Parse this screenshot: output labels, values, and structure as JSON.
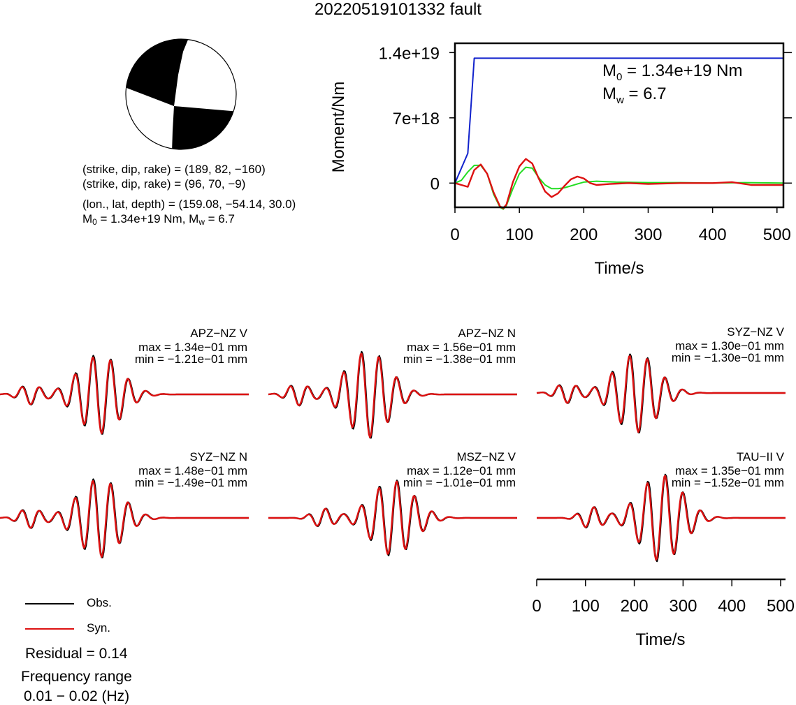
{
  "page_title": "20220519101332 fault",
  "colors": {
    "observed": "#000000",
    "synthetic": "#dd1111",
    "moment": "#1122cc",
    "moment_rate": "#22dd22",
    "beachball_fill": "#000000"
  },
  "source": {
    "plane1": "(strike, dip, rake) = (189, 82, −160)",
    "plane2": "(strike, dip, rake) = (96, 70, −9)",
    "location": "(lon., lat, depth) = (159.08, −54.14, 30.0)",
    "moment_prefix": "M",
    "moment_sub": "0",
    "moment_mid": " = 1.34e+19 Nm, M",
    "moment_sub2": "w",
    "moment_tail": " = 6.7"
  },
  "chart_data": [
    {
      "type": "line",
      "title": "",
      "xlabel": "Time/s",
      "ylabel": "Moment/Nm",
      "xlim": [
        0,
        510
      ],
      "ylim": [
        -2.6e+18,
        1.5e+19
      ],
      "xticks": [
        0,
        100,
        200,
        300,
        400,
        500
      ],
      "xtick_labels": [
        "0",
        "100",
        "200",
        "300",
        "400",
        "500"
      ],
      "yticks": [
        0,
        7e+18,
        1.4e+19
      ],
      "ytick_labels": [
        "0",
        "7e+18",
        "1.4e+19"
      ],
      "annotation_m0": {
        "prefix": "M",
        "sub": "0",
        "text": " = 1.34e+19 Nm"
      },
      "annotation_mw": {
        "prefix": "M",
        "sub": "w",
        "text": " = 6.7"
      },
      "series": [
        {
          "key": "moment",
          "x": [
            0,
            20,
            30,
            510
          ],
          "y": [
            0,
            3.2e+18,
            1.34e+19,
            1.34e+19
          ]
        },
        {
          "key": "moment_rate",
          "x": [
            0,
            10,
            20,
            30,
            40,
            50,
            60,
            70,
            75,
            80,
            90,
            100,
            110,
            120,
            130,
            140,
            150,
            160,
            170,
            180,
            190,
            200,
            220,
            250,
            300,
            350,
            400,
            450,
            510
          ],
          "y": [
            0,
            3e+17,
            1.2e+18,
            1.9e+18,
            1.9e+18,
            1e+18,
            -1.2e+18,
            -2.6e+18,
            -2.8e+18,
            -2.4e+18,
            -6e+17,
            1e+18,
            1.7e+18,
            1.6e+18,
            6e+17,
            -2e+17,
            -6e+17,
            -6e+17,
            -5e+17,
            -3e+17,
            -1e+17,
            1e+17,
            2e+17,
            1e+17,
            5e+16,
            5e+16,
            0.0,
            5e+16,
            0.0
          ]
        },
        {
          "key": "synthetic",
          "x": [
            0,
            10,
            20,
            30,
            40,
            50,
            60,
            70,
            75,
            80,
            90,
            100,
            110,
            120,
            130,
            140,
            150,
            160,
            170,
            180,
            190,
            200,
            210,
            220,
            240,
            270,
            300,
            350,
            400,
            430,
            460,
            490,
            510
          ],
          "y": [
            0,
            -2e+17,
            -4e+17,
            1.4e+18,
            2e+18,
            1e+18,
            -1e+18,
            -2.5e+18,
            -2.7e+18,
            -2.3e+18,
            1e+17,
            1.8e+18,
            2.6e+18,
            2.1e+18,
            5e+17,
            -9e+17,
            -1.5e+18,
            -1.1e+18,
            -3e+17,
            4e+17,
            7e+17,
            5e+17,
            0.0,
            -2e+17,
            -1e+17,
            0.0,
            -1e+17,
            0.0,
            0.0,
            1e+17,
            -2e+17,
            -2e+17,
            -2e+17
          ]
        }
      ]
    },
    {
      "type": "line",
      "title": "",
      "xlabel": "Time/s",
      "ylabel": "",
      "xlim": [
        0,
        510
      ],
      "xticks": [
        0,
        100,
        200,
        300,
        400,
        500
      ],
      "xtick_labels": [
        "0",
        "100",
        "200",
        "300",
        "400",
        "500"
      ],
      "waveforms": [
        {
          "station": "APZ−NZ V",
          "max": "max = 1.34e−01 mm",
          "min": "min = −1.21e−01 mm"
        },
        {
          "station": "APZ−NZ N",
          "max": "max = 1.56e−01 mm",
          "min": "min = −1.38e−01 mm"
        },
        {
          "station": "SYZ−NZ V",
          "max": "max = 1.30e−01 mm",
          "min": "min = −1.30e−01 mm"
        },
        {
          "station": "SYZ−NZ N",
          "max": "max = 1.48e−01 mm",
          "min": "min = −1.49e−01 mm"
        },
        {
          "station": "MSZ−NZ V",
          "max": "max = 1.12e−01 mm",
          "min": "min = −1.01e−01 mm"
        },
        {
          "station": "TAU−II V",
          "max": "max = 1.35e−01 mm",
          "min": "min = −1.52e−01 mm"
        }
      ]
    }
  ],
  "legend": {
    "observed": "Obs.",
    "synthetic": "Syn."
  },
  "residual": "Residual = 0.14",
  "frequency_title": "Frequency range",
  "frequency_range": "0.01 − 0.02 (Hz)"
}
